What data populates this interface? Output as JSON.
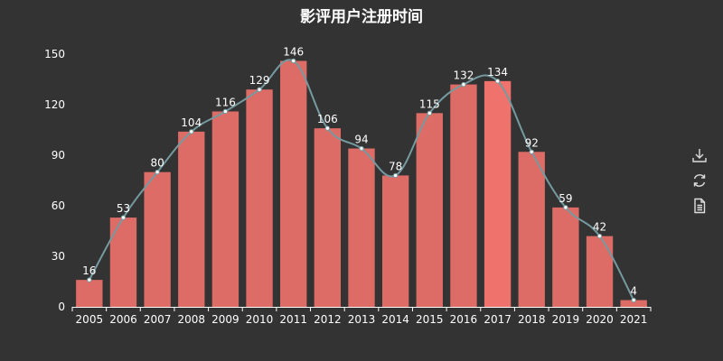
{
  "title": "影评用户注册时间",
  "toolbox": {
    "icons": [
      "download-icon",
      "refresh-icon",
      "data-view-icon"
    ]
  },
  "colors": {
    "background": "#333333",
    "bar": "#dd6b66",
    "bar_emphasis": "#f0726c",
    "line": "#759aa0",
    "text": "#ffffff"
  },
  "chart_data": {
    "type": "bar",
    "title": "影评用户注册时间",
    "categories": [
      "2005",
      "2006",
      "2007",
      "2008",
      "2009",
      "2010",
      "2011",
      "2012",
      "2013",
      "2014",
      "2015",
      "2016",
      "2017",
      "2018",
      "2019",
      "2020",
      "2021"
    ],
    "series": [
      {
        "type": "bar",
        "values": [
          16,
          53,
          80,
          104,
          116,
          129,
          146,
          106,
          94,
          78,
          115,
          132,
          134,
          92,
          59,
          42,
          4
        ]
      },
      {
        "type": "line",
        "smooth": true,
        "values": [
          16,
          53,
          80,
          104,
          116,
          129,
          146,
          106,
          94,
          78,
          115,
          132,
          134,
          92,
          59,
          42,
          4
        ]
      }
    ],
    "ylim": [
      0,
      150
    ],
    "yticks": [
      0,
      30,
      60,
      90,
      120,
      150
    ],
    "data_labels": true,
    "grid": false,
    "emphasized_category": "2017"
  }
}
